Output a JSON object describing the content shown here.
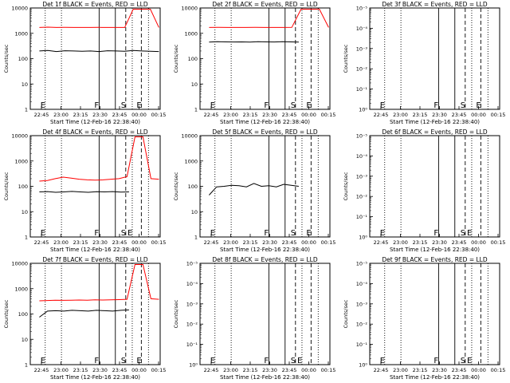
{
  "window": {
    "background": "#ffffff"
  },
  "chart_data": [
    {
      "type": "line",
      "title": "Det 1f BLACK = Events, RED = LLD",
      "xlabel": "Start Time (12-Feb-16 22:38:40)",
      "ylabel": "Counts/sec",
      "ylim": [
        1,
        10000
      ],
      "yscale": "log",
      "ytick_labels": [
        "1",
        "10",
        "100",
        "1000",
        "10000"
      ],
      "xtick_labels": [
        "22:45",
        "23:00",
        "23:15",
        "23:30",
        "23:45",
        "00:00",
        "00:15"
      ],
      "markers": [
        {
          "label": "E",
          "style": "dotted"
        },
        {
          "label": "",
          "style": "dotted"
        },
        {
          "label": "F",
          "style": "solid"
        },
        {
          "label": "",
          "style": "solid"
        },
        {
          "label": "S",
          "style": "dashed"
        },
        {
          "label": "",
          "style": "dotted"
        },
        {
          "label": "E",
          "style": "dashed"
        },
        {
          "label": "",
          "style": "dotted"
        }
      ],
      "series": [
        {
          "color": "#000000",
          "values": [
            200,
            210,
            190,
            205,
            200,
            195,
            200,
            190,
            205,
            200,
            195,
            210,
            200,
            195,
            190
          ]
        },
        {
          "color": "#ff0000",
          "values": [
            1700,
            1750,
            1700,
            1720,
            1700,
            1710,
            1700,
            1720,
            1700,
            1710,
            1700,
            9000,
            9000,
            9000,
            1700
          ]
        }
      ]
    },
    {
      "type": "line",
      "title": "Det 2f BLACK = Events, RED = LLD",
      "xlabel": "Start Time (12-Feb-16 22:38:40)",
      "ylabel": "Counts/sec",
      "ylim": [
        1,
        10000
      ],
      "yscale": "log",
      "ytick_labels": [
        "1",
        "10",
        "100",
        "1000",
        "10000"
      ],
      "xtick_labels": [
        "22:45",
        "23:00",
        "23:15",
        "23:30",
        "23:45",
        "00:00",
        "00:15"
      ],
      "markers": [
        {
          "label": "E",
          "style": "dotted"
        },
        {
          "label": "",
          "style": "dotted"
        },
        {
          "label": "F",
          "style": "solid"
        },
        {
          "label": "",
          "style": "solid"
        },
        {
          "label": "S",
          "style": "dashed"
        },
        {
          "label": "",
          "style": "dotted"
        },
        {
          "label": "E",
          "style": "dashed"
        },
        {
          "label": "",
          "style": "dotted"
        }
      ],
      "series": [
        {
          "color": "#000000",
          "values": [
            450,
            470,
            460,
            455,
            460,
            450,
            465,
            460,
            455,
            470,
            460,
            450
          ]
        },
        {
          "color": "#ff0000",
          "values": [
            1700,
            1720,
            1700,
            1710,
            1700,
            1720,
            1700,
            1710,
            1700,
            1720,
            9000,
            9000,
            9000,
            1700
          ]
        }
      ]
    },
    {
      "type": "line",
      "title": "Det 3f BLACK = Events, RED = LLD",
      "xlabel": "Start Time (12-Feb-16 22:38:40)",
      "ylabel": "Counts/sec",
      "ylim": [
        1,
        1e-05
      ],
      "yscale": "log",
      "ytick_labels": [
        "10⁰",
        "10⁻¹",
        "10⁻²",
        "10⁻³",
        "10⁻⁴",
        "10⁻⁵"
      ],
      "xtick_labels": [
        "22:45",
        "23:00",
        "23:15",
        "23:30",
        "23:45",
        "00:00",
        "00:15"
      ],
      "markers": [
        {
          "label": "E",
          "style": "dotted"
        },
        {
          "label": "",
          "style": "dotted"
        },
        {
          "label": "F",
          "style": "solid"
        },
        {
          "label": "",
          "style": "solid"
        },
        {
          "label": "S",
          "style": "dashed"
        },
        {
          "label": "",
          "style": "dotted"
        },
        {
          "label": "E",
          "style": "dashed"
        },
        {
          "label": "",
          "style": "dotted"
        }
      ],
      "series": []
    },
    {
      "type": "line",
      "title": "Det 4f BLACK = Events, RED = LLD",
      "xlabel": "Start Time (12-Feb-16 22:38:40)",
      "ylabel": "Counts/sec",
      "ylim": [
        1,
        10000
      ],
      "yscale": "log",
      "ytick_labels": [
        "1",
        "10",
        "100",
        "1000",
        "10000"
      ],
      "xtick_labels": [
        "22:45",
        "23:00",
        "23:15",
        "23:30",
        "23:45",
        "00:00",
        "00:15"
      ],
      "markers": [
        {
          "label": "E",
          "style": "dotted"
        },
        {
          "label": "",
          "style": "dotted"
        },
        {
          "label": "F",
          "style": "solid"
        },
        {
          "label": "",
          "style": "solid"
        },
        {
          "label": "S",
          "style": "dashed"
        },
        {
          "label": "E",
          "style": "dotted"
        },
        {
          "label": "",
          "style": "dashed"
        },
        {
          "label": "",
          "style": "dotted"
        }
      ],
      "series": [
        {
          "color": "#000000",
          "values": [
            60,
            62,
            58,
            60,
            63,
            60,
            58,
            61,
            60,
            62,
            59,
            60
          ]
        },
        {
          "color": "#ff0000",
          "values": [
            160,
            170,
            200,
            230,
            210,
            190,
            180,
            175,
            180,
            190,
            200,
            240,
            9000,
            9000,
            200,
            190
          ]
        }
      ]
    },
    {
      "type": "line",
      "title": "Det 5f BLACK = Events, RED = LLD",
      "xlabel": "Start Time (12-Feb-16 22:38:40)",
      "ylabel": "Counts/sec",
      "ylim": [
        1,
        10000
      ],
      "yscale": "log",
      "ytick_labels": [
        "1",
        "10",
        "100",
        "1000",
        "10000"
      ],
      "xtick_labels": [
        "22:45",
        "23:00",
        "23:15",
        "23:30",
        "23:45",
        "00:00",
        "00:15"
      ],
      "markers": [
        {
          "label": "E",
          "style": "dotted"
        },
        {
          "label": "",
          "style": "dotted"
        },
        {
          "label": "F",
          "style": "solid"
        },
        {
          "label": "",
          "style": "solid"
        },
        {
          "label": "S",
          "style": "dashed"
        },
        {
          "label": "",
          "style": "dotted"
        },
        {
          "label": "E",
          "style": "dashed"
        },
        {
          "label": "",
          "style": "dotted"
        }
      ],
      "series": [
        {
          "color": "#000000",
          "values": [
            45,
            95,
            100,
            110,
            105,
            95,
            130,
            100,
            105,
            95,
            120,
            110,
            100
          ]
        }
      ]
    },
    {
      "type": "line",
      "title": "Det 6f BLACK = Events, RED = LLD",
      "xlabel": "Start Time (12-Feb-16 22:38:40)",
      "ylabel": "Counts/sec",
      "ylim": [
        1,
        1e-05
      ],
      "yscale": "log",
      "ytick_labels": [
        "10⁰",
        "10⁻¹",
        "10⁻²",
        "10⁻³",
        "10⁻⁴",
        "10⁻⁵"
      ],
      "xtick_labels": [
        "22:45",
        "23:00",
        "23:15",
        "23:30",
        "23:45",
        "00:00",
        "00:15"
      ],
      "markers": [
        {
          "label": "E",
          "style": "dotted"
        },
        {
          "label": "",
          "style": "dotted"
        },
        {
          "label": "F",
          "style": "solid"
        },
        {
          "label": "",
          "style": "solid"
        },
        {
          "label": "S",
          "style": "dashed"
        },
        {
          "label": "E",
          "style": "dotted"
        },
        {
          "label": "",
          "style": "dashed"
        },
        {
          "label": "",
          "style": "dotted"
        }
      ],
      "series": []
    },
    {
      "type": "line",
      "title": "Det 7f BLACK = Events, RED = LLD",
      "xlabel": "Start Time (12-Feb-16 22:38:40)",
      "ylabel": "Counts/sec",
      "ylim": [
        1,
        10000
      ],
      "yscale": "log",
      "ytick_labels": [
        "1",
        "10",
        "100",
        "1000",
        "10000"
      ],
      "xtick_labels": [
        "22:45",
        "23:00",
        "23:15",
        "23:30",
        "23:45",
        "00:00",
        "00:15"
      ],
      "markers": [
        {
          "label": "E",
          "style": "dotted"
        },
        {
          "label": "",
          "style": "dotted"
        },
        {
          "label": "F",
          "style": "solid"
        },
        {
          "label": "",
          "style": "solid"
        },
        {
          "label": "S",
          "style": "dashed"
        },
        {
          "label": "",
          "style": "dotted"
        },
        {
          "label": "E",
          "style": "dashed"
        },
        {
          "label": "",
          "style": "dotted"
        }
      ],
      "series": [
        {
          "color": "#000000",
          "values": [
            75,
            130,
            135,
            130,
            140,
            135,
            130,
            140,
            135,
            130,
            140,
            145
          ]
        },
        {
          "color": "#ff0000",
          "values": [
            330,
            340,
            350,
            345,
            350,
            355,
            350,
            360,
            355,
            360,
            370,
            380,
            9000,
            9000,
            400,
            380
          ]
        }
      ]
    },
    {
      "type": "line",
      "title": "Det 8f BLACK = Events, RED = LLD",
      "xlabel": "Start Time (12-Feb-16 22:38:40)",
      "ylabel": "Counts/sec",
      "ylim": [
        1,
        1e-05
      ],
      "yscale": "log",
      "ytick_labels": [
        "10⁰",
        "10⁻¹",
        "10⁻²",
        "10⁻³",
        "10⁻⁴",
        "10⁻⁵"
      ],
      "xtick_labels": [
        "22:45",
        "23:00",
        "23:15",
        "23:30",
        "23:45",
        "00:00",
        "00:15"
      ],
      "markers": [
        {
          "label": "E",
          "style": "dotted"
        },
        {
          "label": "",
          "style": "dotted"
        },
        {
          "label": "F",
          "style": "solid"
        },
        {
          "label": "",
          "style": "solid"
        },
        {
          "label": "S",
          "style": "dashed"
        },
        {
          "label": "E",
          "style": "dotted"
        },
        {
          "label": "",
          "style": "dashed"
        },
        {
          "label": "",
          "style": "dotted"
        }
      ],
      "series": []
    },
    {
      "type": "line",
      "title": "Det 9f BLACK = Events, RED = LLD",
      "xlabel": "Start Time (12-Feb-16 22:38:40)",
      "ylabel": "Counts/sec",
      "ylim": [
        1,
        1e-05
      ],
      "yscale": "log",
      "ytick_labels": [
        "10⁰",
        "10⁻¹",
        "10⁻²",
        "10⁻³",
        "10⁻⁴",
        "10⁻⁵"
      ],
      "xtick_labels": [
        "22:45",
        "23:00",
        "23:15",
        "23:30",
        "23:45",
        "00:00",
        "00:15"
      ],
      "markers": [
        {
          "label": "E",
          "style": "dotted"
        },
        {
          "label": "",
          "style": "dotted"
        },
        {
          "label": "F",
          "style": "solid"
        },
        {
          "label": "",
          "style": "solid"
        },
        {
          "label": "S",
          "style": "dashed"
        },
        {
          "label": "E",
          "style": "dotted"
        },
        {
          "label": "",
          "style": "dashed"
        },
        {
          "label": "",
          "style": "dotted"
        }
      ],
      "series": []
    }
  ]
}
